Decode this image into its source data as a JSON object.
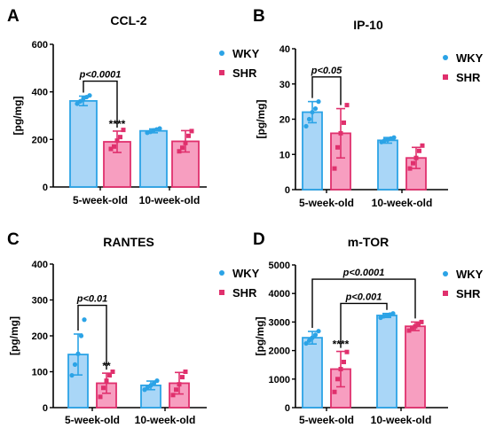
{
  "colors": {
    "wky_fill": "#a9d6f7",
    "wky_stroke": "#2ba3e6",
    "shr_fill": "#f79ec0",
    "shr_stroke": "#e0306d",
    "axis": "#000000"
  },
  "chart_data": [
    {
      "panel": "A",
      "type": "bar",
      "title": "CCL-2",
      "ylabel": "[pg/mg]",
      "ylim": [
        0,
        600
      ],
      "yticks": [
        0,
        200,
        400,
        600
      ],
      "categories": [
        "5-week-old",
        "10-week-old"
      ],
      "series": [
        {
          "name": "WKY",
          "values": [
            362,
            236
          ],
          "errors": [
            20,
            8
          ],
          "points": [
            [
              350,
              360,
              372,
              378,
              385
            ],
            [
              228,
              232,
              238,
              242,
              246
            ]
          ]
        },
        {
          "name": "SHR",
          "values": [
            190,
            192
          ],
          "errors": [
            45,
            45
          ],
          "points": [
            [
              160,
              170,
              195,
              210,
              240
            ],
            [
              150,
              165,
              185,
              215,
              235
            ]
          ]
        }
      ],
      "stars": [
        {
          "series": 1,
          "category": 0,
          "text": "****"
        }
      ],
      "brackets": [
        {
          "label": "p<0.0001",
          "y": 445,
          "from": [
            0,
            0
          ],
          "to": [
            0,
            1
          ]
        }
      ]
    },
    {
      "panel": "B",
      "type": "bar",
      "title": "IP-10",
      "ylabel": "[pg/mg]",
      "ylim": [
        0,
        40
      ],
      "yticks": [
        0,
        10,
        20,
        30,
        40
      ],
      "categories": [
        "5-week-old",
        "10-week-old"
      ],
      "series": [
        {
          "name": "WKY",
          "values": [
            22,
            14
          ],
          "errors": [
            3,
            0.8
          ],
          "points": [
            [
              18,
              20,
              22,
              23,
              25
            ],
            [
              13.5,
              14,
              14.2,
              14.5,
              14.8
            ]
          ]
        },
        {
          "name": "SHR",
          "values": [
            16,
            9
          ],
          "errors": [
            7,
            3
          ],
          "points": [
            [
              6,
              12,
              16,
              19,
              24
            ],
            [
              6,
              7.5,
              9,
              11,
              12.5
            ]
          ]
        }
      ],
      "stars": [],
      "brackets": [
        {
          "label": "p<0.05",
          "y": 32,
          "from": [
            0,
            0
          ],
          "to": [
            0,
            1
          ]
        }
      ]
    },
    {
      "panel": "C",
      "type": "bar",
      "title": "RANTES",
      "ylabel": "[pg/mg]",
      "ylim": [
        0,
        400
      ],
      "yticks": [
        0,
        100,
        200,
        300,
        400
      ],
      "categories": [
        "5-week-old",
        "10-week-old"
      ],
      "series": [
        {
          "name": "WKY",
          "values": [
            148,
            62
          ],
          "errors": [
            57,
            12
          ],
          "points": [
            [
              90,
              120,
              150,
              200,
              245
            ],
            [
              50,
              57,
              62,
              68,
              75
            ]
          ]
        },
        {
          "name": "SHR",
          "values": [
            68,
            68
          ],
          "errors": [
            28,
            30
          ],
          "points": [
            [
              30,
              55,
              75,
              90,
              100
            ],
            [
              35,
              50,
              65,
              85,
              100
            ]
          ]
        }
      ],
      "stars": [
        {
          "series": 1,
          "category": 0,
          "text": "**"
        }
      ],
      "brackets": [
        {
          "label": "p<0.01",
          "y": 285,
          "from": [
            0,
            0
          ],
          "to": [
            0,
            1
          ]
        }
      ]
    },
    {
      "panel": "D",
      "type": "bar",
      "title": "m-TOR",
      "ylabel": "[pg/mg]",
      "ylim": [
        0,
        5000
      ],
      "yticks": [
        0,
        1000,
        2000,
        3000,
        4000,
        5000
      ],
      "categories": [
        "5-week-old",
        "10-week-old"
      ],
      "series": [
        {
          "name": "WKY",
          "values": [
            2450,
            3230
          ],
          "errors": [
            220,
            70
          ],
          "points": [
            [
              2250,
              2350,
              2450,
              2550,
              2680
            ],
            [
              3150,
              3200,
              3230,
              3260,
              3300
            ]
          ]
        },
        {
          "name": "SHR",
          "values": [
            1350,
            2850
          ],
          "errors": [
            620,
            150
          ],
          "points": [
            [
              550,
              1000,
              1350,
              1600,
              1950
            ],
            [
              2700,
              2800,
              2850,
              2920,
              3000
            ]
          ]
        }
      ],
      "stars": [
        {
          "series": 1,
          "category": 0,
          "text": "****"
        }
      ],
      "brackets": [
        {
          "label": "p<0.001",
          "y": 3650,
          "from": [
            1,
            0
          ],
          "to": [
            0,
            1
          ]
        },
        {
          "label": "p<0.0001",
          "y": 4500,
          "from": [
            0,
            0
          ],
          "to": [
            1,
            1
          ]
        }
      ]
    }
  ]
}
